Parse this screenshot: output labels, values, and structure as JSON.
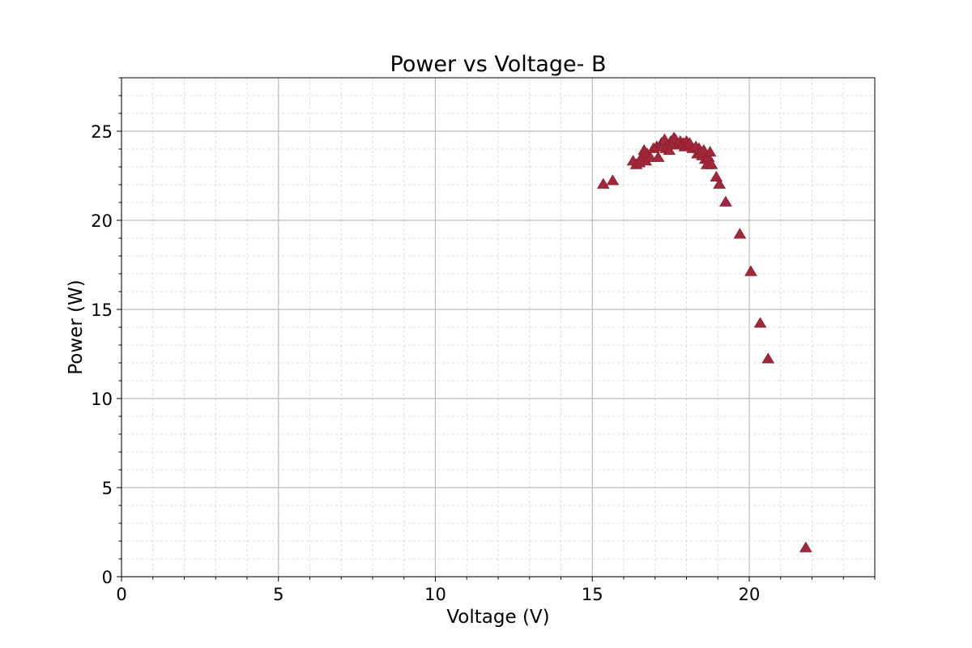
{
  "chart_data": {
    "type": "scatter",
    "title": "Power vs Voltage- B",
    "xlabel": "Voltage (V)",
    "ylabel": "Power (W)",
    "xlim": [
      0,
      24
    ],
    "ylim": [
      0,
      28
    ],
    "xticks": [
      "0",
      "5",
      "10",
      "15",
      "20"
    ],
    "yticks": [
      "0",
      "5",
      "10",
      "15",
      "20",
      "25"
    ],
    "grid": {
      "major": true,
      "minor": true
    },
    "marker": "triangle",
    "color": "#a3273a",
    "series": [
      {
        "x": [
          15.35,
          15.65,
          16.3,
          16.4,
          16.5,
          16.55,
          16.6,
          16.65,
          16.7,
          16.75,
          16.85,
          16.95,
          17.05,
          17.1,
          17.2,
          17.25,
          17.3,
          17.35,
          17.45,
          17.5,
          17.55,
          17.6,
          17.65,
          17.7,
          17.8,
          17.85,
          17.9,
          17.95,
          18.0,
          18.05,
          18.1,
          18.2,
          18.3,
          18.35,
          18.4,
          18.45,
          18.5,
          18.55,
          18.6,
          18.65,
          18.7,
          18.75,
          18.8,
          18.95,
          19.05,
          19.25,
          19.7,
          20.05,
          20.35,
          20.6,
          21.8
        ],
        "y": [
          22.0,
          22.2,
          23.3,
          23.1,
          23.2,
          23.4,
          23.6,
          23.9,
          23.3,
          23.7,
          23.5,
          24.0,
          24.1,
          23.5,
          24.3,
          24.1,
          24.5,
          24.0,
          23.9,
          24.4,
          24.2,
          24.6,
          24.5,
          24.3,
          24.4,
          24.2,
          24.3,
          24.1,
          24.4,
          24.2,
          24.3,
          24.0,
          24.1,
          23.7,
          24.0,
          23.8,
          23.6,
          23.9,
          23.4,
          23.1,
          23.5,
          23.8,
          23.1,
          22.4,
          22.0,
          21.0,
          19.2,
          17.1,
          14.2,
          12.2,
          1.6
        ]
      }
    ]
  }
}
